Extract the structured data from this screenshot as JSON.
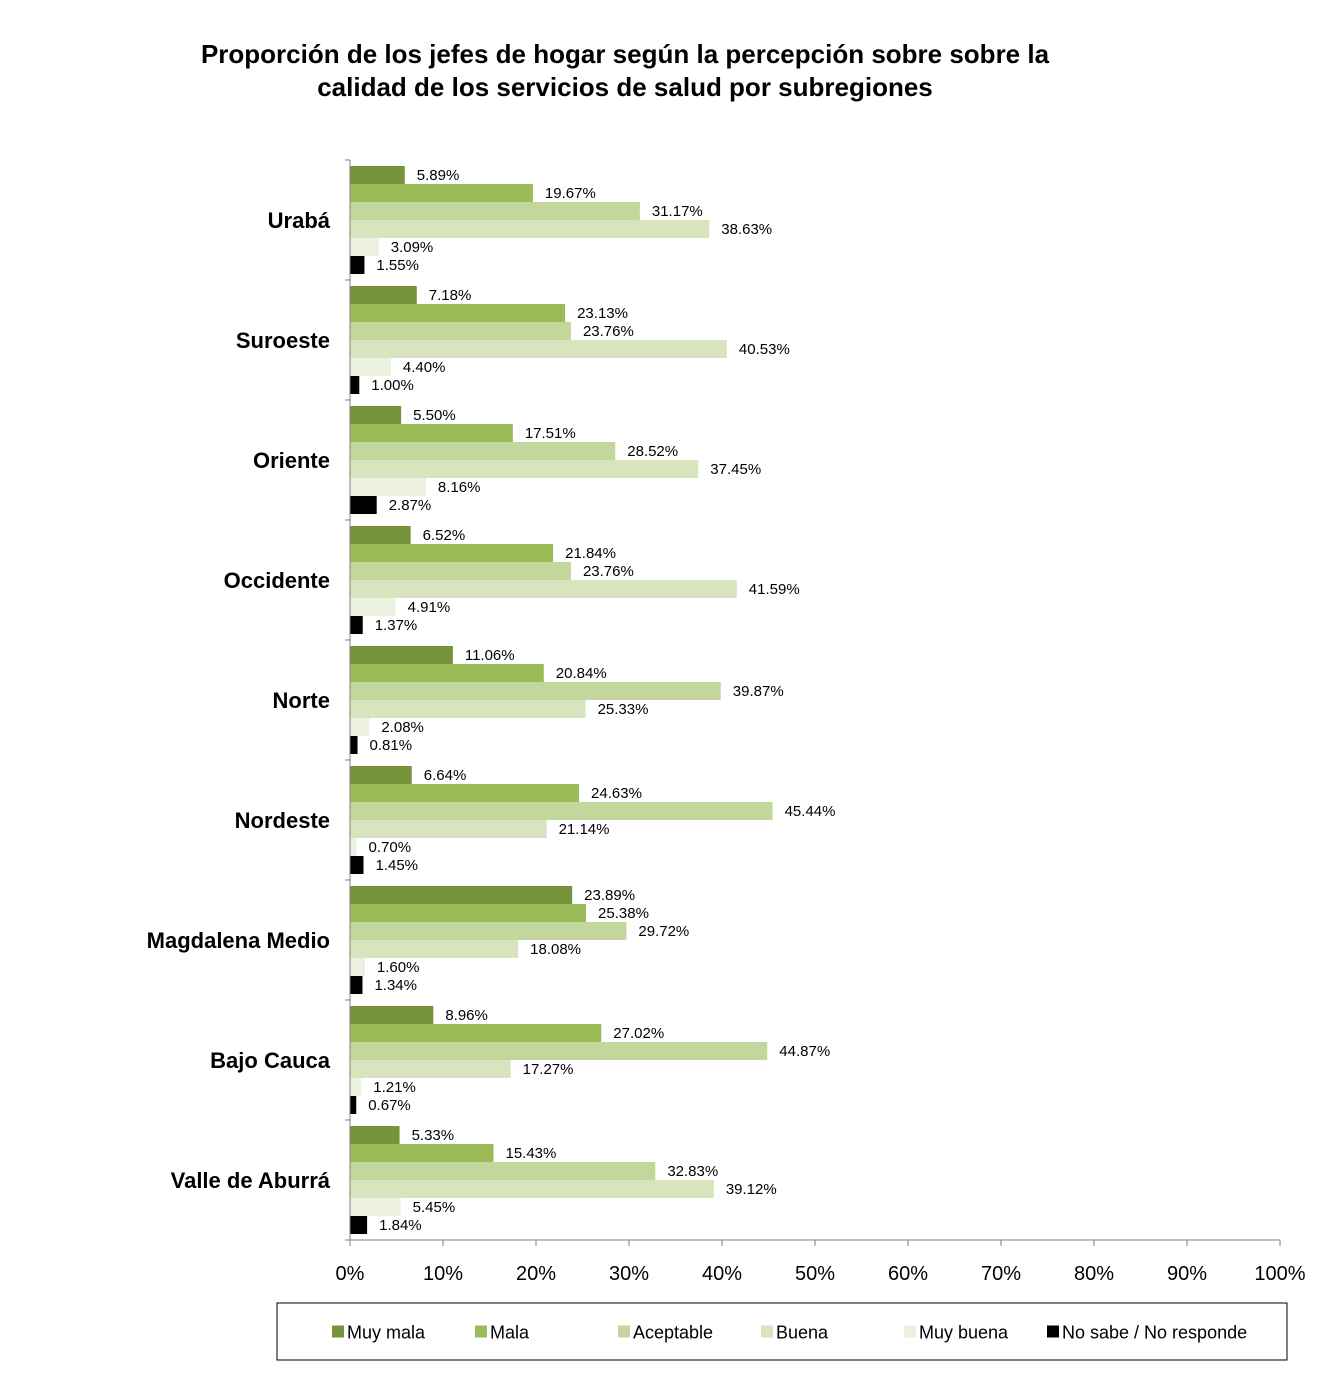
{
  "chart_data": {
    "type": "bar",
    "orientation": "horizontal",
    "title_lines": [
      "Proporción de los jefes de hogar según la percepción sobre sobre  la",
      "calidad de los servicios de salud por subregiones"
    ],
    "categories": [
      "Urabá",
      "Suroeste",
      "Oriente",
      "Occidente",
      "Norte",
      "Nordeste",
      "Magdalena Medio",
      "Bajo Cauca",
      "Valle de Aburrá"
    ],
    "series": [
      {
        "name": "Muy mala",
        "color": "#77933c",
        "values": [
          5.89,
          7.18,
          5.5,
          6.52,
          11.06,
          6.64,
          23.89,
          8.96,
          5.33
        ],
        "labels": [
          "5.89%",
          "7.18%",
          "5.50%",
          "6.52%",
          "11.06%",
          "6.64%",
          "23.89%",
          "8.96%",
          "5.33%"
        ]
      },
      {
        "name": "Mala",
        "color": "#9bbb59",
        "values": [
          19.67,
          23.13,
          17.51,
          21.84,
          20.84,
          24.63,
          25.38,
          27.02,
          15.43
        ],
        "labels": [
          "19.67%",
          "23.13%",
          "17.51%",
          "21.84%",
          "20.84%",
          "24.63%",
          "25.38%",
          "27.02%",
          "15.43%"
        ]
      },
      {
        "name": "Aceptable",
        "color": "#c3d69b",
        "values": [
          31.17,
          23.76,
          28.52,
          23.76,
          39.87,
          45.44,
          29.72,
          44.87,
          32.83
        ],
        "labels": [
          "31.17%",
          "23.76%",
          "28.52%",
          "23.76%",
          "39.87%",
          "45.44%",
          "29.72%",
          "44.87%",
          "32.83%"
        ]
      },
      {
        "name": "Buena",
        "color": "#d7e4bd",
        "values": [
          38.63,
          40.53,
          37.45,
          41.59,
          25.33,
          21.14,
          18.08,
          17.27,
          39.12
        ],
        "labels": [
          "38.63%",
          "40.53%",
          "37.45%",
          "41.59%",
          "25.33%",
          "21.14%",
          "18.08%",
          "17.27%",
          "39.12%"
        ]
      },
      {
        "name": "Muy buena",
        "color": "#ebf1de",
        "values": [
          3.09,
          4.4,
          8.16,
          4.91,
          2.08,
          0.7,
          1.6,
          1.21,
          5.45
        ],
        "labels": [
          "3.09%",
          "4.40%",
          "8.16%",
          "4.91%",
          "2.08%",
          "0.70%",
          "1.60%",
          "1.21%",
          "5.45%"
        ]
      },
      {
        "name": "No sabe / No responde",
        "color": "#000000",
        "values": [
          1.55,
          1.0,
          2.87,
          1.37,
          0.81,
          1.45,
          1.34,
          0.67,
          1.84
        ],
        "labels": [
          "1.55%",
          "1.00%",
          "2.87%",
          "1.37%",
          "0.81%",
          "1.45%",
          "1.34%",
          "0.67%",
          "1.84%"
        ]
      }
    ],
    "xlim": [
      0,
      100
    ],
    "x_ticks": [
      "0%",
      "10%",
      "20%",
      "30%",
      "40%",
      "50%",
      "60%",
      "70%",
      "80%",
      "90%",
      "100%"
    ],
    "grid": false,
    "legend_position": "bottom"
  }
}
